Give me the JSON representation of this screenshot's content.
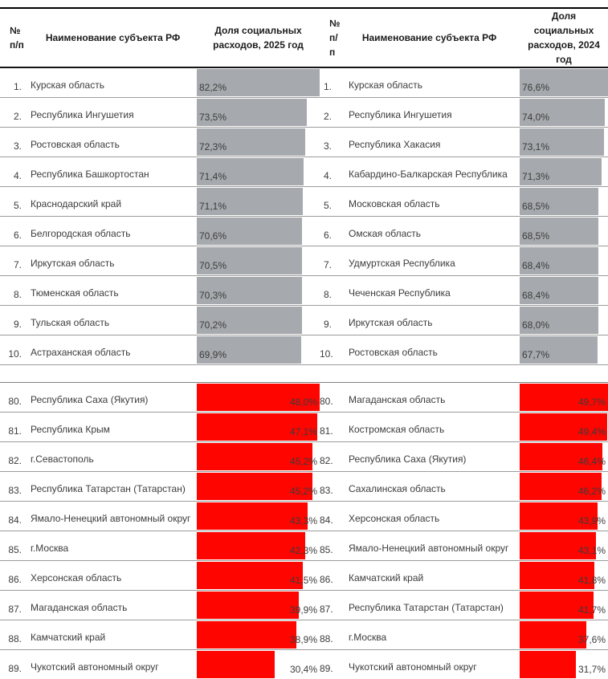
{
  "header": {
    "rank": "№ п/п",
    "name": "Наименование субъекта РФ",
    "share_2025": "Доля социальных расходов, 2025 год",
    "share_2024": "Доля социальных расходов, 2024 год"
  },
  "colors": {
    "bar_gray": "#a6a9ad",
    "bar_red": "#fe0500",
    "text": "#3c3c3c"
  },
  "chart_data": {
    "type": "bar",
    "unit": "%",
    "note": "in-cell data bars; bar length proportional to value within each section, section max = full cell width",
    "left": {
      "header": "Доля социальных расходов, 2025 год",
      "top10": [
        {
          "rank": "1.",
          "region": "Курская область",
          "value": 82.2,
          "label": "82,2%"
        },
        {
          "rank": "2.",
          "region": "Республика Ингушетия",
          "value": 73.5,
          "label": "73,5%"
        },
        {
          "rank": "3.",
          "region": "Ростовская область",
          "value": 72.3,
          "label": "72,3%"
        },
        {
          "rank": "4.",
          "region": "Республика Башкортостан",
          "value": 71.4,
          "label": "71,4%"
        },
        {
          "rank": "5.",
          "region": "Краснодарский край",
          "value": 71.1,
          "label": "71,1%"
        },
        {
          "rank": "6.",
          "region": "Белгородская область",
          "value": 70.6,
          "label": "70,6%"
        },
        {
          "rank": "7.",
          "region": "Иркутская область",
          "value": 70.5,
          "label": "70,5%"
        },
        {
          "rank": "8.",
          "region": "Тюменская область",
          "value": 70.3,
          "label": "70,3%"
        },
        {
          "rank": "9.",
          "region": "Тульская область",
          "value": 70.2,
          "label": "70,2%"
        },
        {
          "rank": "10.",
          "region": "Астраханская область",
          "value": 69.9,
          "label": "69,9%"
        }
      ],
      "bottom10": [
        {
          "rank": "80.",
          "region": "Республика Саха (Якутия)",
          "value": 48.0,
          "label": "48,0%"
        },
        {
          "rank": "81.",
          "region": "Республика Крым",
          "value": 47.1,
          "label": "47,1%"
        },
        {
          "rank": "82.",
          "region": "г.Севастополь",
          "value": 45.2,
          "label": "45,2%"
        },
        {
          "rank": "83.",
          "region": "Республика Татарстан (Татарстан)",
          "value": 45.2,
          "label": "45,2%"
        },
        {
          "rank": "84.",
          "region": "Ямало-Ненецкий автономный округ",
          "value": 43.3,
          "label": "43,3%"
        },
        {
          "rank": "85.",
          "region": "г.Москва",
          "value": 42.3,
          "label": "42,3%"
        },
        {
          "rank": "86.",
          "region": "Херсонская область",
          "value": 41.5,
          "label": "41,5%"
        },
        {
          "rank": "87.",
          "region": "Магаданская область",
          "value": 39.9,
          "label": "39,9%"
        },
        {
          "rank": "88.",
          "region": "Камчатский край",
          "value": 38.9,
          "label": "38,9%"
        },
        {
          "rank": "89.",
          "region": "Чукотский автономный округ",
          "value": 30.4,
          "label": "30,4%"
        }
      ]
    },
    "right": {
      "header": "Доля социальных расходов, 2024 год",
      "top10": [
        {
          "rank": "1.",
          "region": "Курская область",
          "value": 76.6,
          "label": "76,6%"
        },
        {
          "rank": "2.",
          "region": "Республика Ингушетия",
          "value": 74.0,
          "label": "74,0%"
        },
        {
          "rank": "3.",
          "region": "Республика Хакасия",
          "value": 73.1,
          "label": "73,1%"
        },
        {
          "rank": "4.",
          "region": "Кабардино-Балкарская Республика",
          "value": 71.3,
          "label": "71,3%"
        },
        {
          "rank": "5.",
          "region": "Московская область",
          "value": 68.5,
          "label": "68,5%"
        },
        {
          "rank": "6.",
          "region": "Омская область",
          "value": 68.5,
          "label": "68,5%"
        },
        {
          "rank": "7.",
          "region": "Удмуртская Республика",
          "value": 68.4,
          "label": "68,4%"
        },
        {
          "rank": "8.",
          "region": "Чеченская Республика",
          "value": 68.4,
          "label": "68,4%"
        },
        {
          "rank": "9.",
          "region": "Иркутская область",
          "value": 68.0,
          "label": "68,0%"
        },
        {
          "rank": "10.",
          "region": "Ростовская область",
          "value": 67.7,
          "label": "67,7%"
        }
      ],
      "bottom10": [
        {
          "rank": "80.",
          "region": "Магаданская область",
          "value": 49.7,
          "label": "49,7%"
        },
        {
          "rank": "81.",
          "region": "Костромская область",
          "value": 49.4,
          "label": "49,4%"
        },
        {
          "rank": "82.",
          "region": "Республика Саха (Якутия)",
          "value": 46.4,
          "label": "46,4%"
        },
        {
          "rank": "83.",
          "region": "Сахалинская область",
          "value": 46.2,
          "label": "46,2%"
        },
        {
          "rank": "84.",
          "region": "Херсонская область",
          "value": 43.9,
          "label": "43,9%"
        },
        {
          "rank": "85.",
          "region": "Ямало-Ненецкий автономный округ",
          "value": 43.1,
          "label": "43,1%"
        },
        {
          "rank": "86.",
          "region": "Камчатский край",
          "value": 41.8,
          "label": "41,8%"
        },
        {
          "rank": "87.",
          "region": "Республика Татарстан (Татарстан)",
          "value": 41.7,
          "label": "41,7%"
        },
        {
          "rank": "88.",
          "region": "г.Москва",
          "value": 37.6,
          "label": "37,6%"
        },
        {
          "rank": "89.",
          "region": "Чукотский автономный округ",
          "value": 31.7,
          "label": "31,7%"
        }
      ]
    }
  }
}
